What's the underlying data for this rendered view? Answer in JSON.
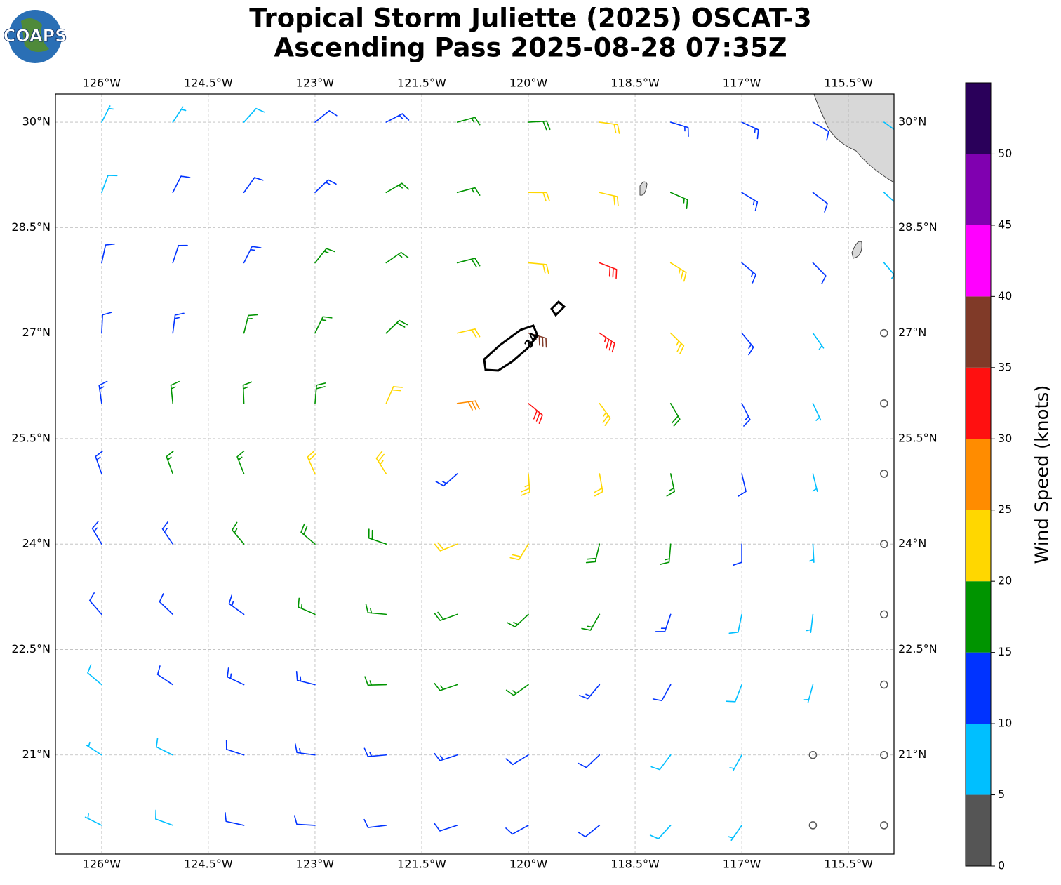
{
  "logo": "COAPS",
  "map": {
    "type": "wind-barbs",
    "title": [
      "Tropical Storm Juliette (2025) OSCAT-3",
      "Ascending Pass 2025-08-28 07:35Z"
    ],
    "xlim": [
      -126.65,
      -114.86
    ],
    "ylim": [
      19.59,
      30.4
    ],
    "xticks": [
      {
        "value": -126,
        "label": "126°W"
      },
      {
        "value": -124.5,
        "label": "124.5°W"
      },
      {
        "value": -123,
        "label": "123°W"
      },
      {
        "value": -121.5,
        "label": "121.5°W"
      },
      {
        "value": -120,
        "label": "120°W"
      },
      {
        "value": -118.5,
        "label": "118.5°W"
      },
      {
        "value": -117,
        "label": "117°W"
      },
      {
        "value": -115.5,
        "label": "115.5°W"
      }
    ],
    "yticks": [
      {
        "value": 21,
        "label": "21°N"
      },
      {
        "value": 22.5,
        "label": "22.5°N"
      },
      {
        "value": 24,
        "label": "24°N"
      },
      {
        "value": 25.5,
        "label": "25.5°N"
      },
      {
        "value": 27,
        "label": "27°N"
      },
      {
        "value": 28.5,
        "label": "28.5°N"
      },
      {
        "value": 30,
        "label": "30°N"
      }
    ],
    "grid": true,
    "contour_label": "34",
    "lons": [
      -126,
      -125,
      -124,
      -123,
      -122,
      -121,
      -120,
      -119,
      -118,
      -117,
      -116,
      -115
    ],
    "lats": [
      30,
      29,
      28,
      27,
      26,
      25,
      24,
      23,
      22,
      21,
      20
    ],
    "speeds": [
      [
        7,
        7,
        8,
        12,
        14,
        17,
        18,
        22,
        14,
        14,
        12,
        8
      ],
      [
        8,
        10,
        12,
        13,
        16,
        17,
        21,
        22,
        17,
        13,
        12,
        8
      ],
      [
        10,
        12,
        13,
        15,
        17,
        19,
        21,
        30,
        24,
        13,
        10,
        6
      ],
      [
        12,
        13,
        15,
        17,
        18,
        22,
        35,
        33,
        23,
        13,
        5,
        4
      ],
      [
        13,
        15,
        17,
        19,
        22,
        28,
        30,
        23,
        18,
        13,
        5,
        4
      ],
      [
        13,
        15,
        17,
        20,
        23,
        13,
        23,
        22,
        17,
        12,
        6,
        4
      ],
      [
        13,
        14,
        16,
        18,
        19,
        20,
        20,
        18,
        15,
        11,
        6,
        4
      ],
      [
        10,
        12,
        14,
        16,
        17,
        18,
        17,
        16,
        13,
        9,
        6,
        4
      ],
      [
        8,
        11,
        13,
        14,
        15,
        16,
        15,
        13,
        11,
        8,
        5,
        4
      ],
      [
        7,
        9,
        11,
        13,
        13,
        13,
        12,
        11,
        9,
        6,
        4,
        4
      ],
      [
        7,
        8,
        10,
        11,
        12,
        12,
        11,
        10,
        8,
        6,
        4,
        4
      ]
    ],
    "colorbar": {
      "label": "Wind Speed (knots)",
      "bounds": [
        0,
        5,
        10,
        15,
        20,
        25,
        30,
        35,
        40,
        45,
        50,
        55
      ],
      "colors": [
        "#555555",
        "#00bfff",
        "#0033ff",
        "#009400",
        "#ffd700",
        "#ff8c00",
        "#ff1010",
        "#803a28",
        "#ff00ff",
        "#8000b0",
        "#2a005a"
      ],
      "ticks": [
        0,
        5,
        10,
        15,
        20,
        25,
        30,
        35,
        40,
        45,
        50
      ]
    }
  }
}
